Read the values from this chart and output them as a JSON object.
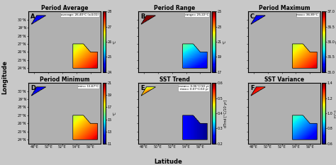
{
  "panels": [
    {
      "label": "A",
      "title": "Period Average",
      "annotation": "average: 26.40°C (±4.01)",
      "cmap": "jet",
      "clim": [
        24,
        28
      ],
      "cticks": [
        24,
        25,
        26,
        27,
        28
      ],
      "cunit": "°C",
      "gradient": [
        0.6,
        0.4,
        0.0,
        1.0
      ]
    },
    {
      "label": "B",
      "title": "Period Range",
      "annotation": "range= 25.22°C",
      "cmap": "jet",
      "clim": [
        17,
        25
      ],
      "cticks": [
        17,
        19,
        21,
        23,
        25
      ],
      "cunit": "°C",
      "gradient": [
        0.0,
        1.0,
        1.0,
        0.0
      ]
    },
    {
      "label": "C",
      "title": "Period Maximum",
      "annotation": "max= 36.89°C",
      "cmap": "jet",
      "clim": [
        35,
        37
      ],
      "cticks": [
        35,
        35.5,
        36,
        36.5,
        37
      ],
      "cunit": "°C",
      "gradient": [
        0.6,
        0.4,
        0.0,
        1.0
      ]
    },
    {
      "label": "D",
      "title": "Period Minimum",
      "annotation": "min= 11.67°C",
      "cmap": "jet",
      "clim": [
        11,
        21
      ],
      "cticks": [
        11,
        13,
        15,
        17,
        19,
        21
      ],
      "cunit": "°C",
      "gradient": [
        0.6,
        0.4,
        0.0,
        1.0
      ]
    },
    {
      "label": "E",
      "title": "SST Trend",
      "annotation": "mean= 0.06°C/10 yr\nmax= 0.07°C/10 yr",
      "cmap": "jet",
      "clim": [
        0.2,
        0.6
      ],
      "cticks": [
        0.2,
        0.3,
        0.4,
        0.5,
        0.6
      ],
      "cunit": "dTrnd [°C/10 yr]",
      "gradient": [
        1.0,
        0.0,
        0.0,
        1.0
      ]
    },
    {
      "label": "F",
      "title": "SST Variance",
      "annotation": "",
      "cmap": "jet",
      "clim": [
        0.6,
        1.4
      ],
      "cticks": [
        0.6,
        0.8,
        1.0,
        1.2,
        1.4
      ],
      "cunit": "[°C²]",
      "gradient": [
        0.0,
        1.0,
        1.0,
        0.0
      ]
    }
  ],
  "xlabel": "Latitude",
  "ylabel": "Longitude",
  "bg_color": "#b0b0b0",
  "figure_bg": "#c8c8c8",
  "lon_axis_min": 23.5,
  "lon_axis_max": 30.8,
  "lat_axis_min": 47.0,
  "lat_axis_max": 57.5
}
